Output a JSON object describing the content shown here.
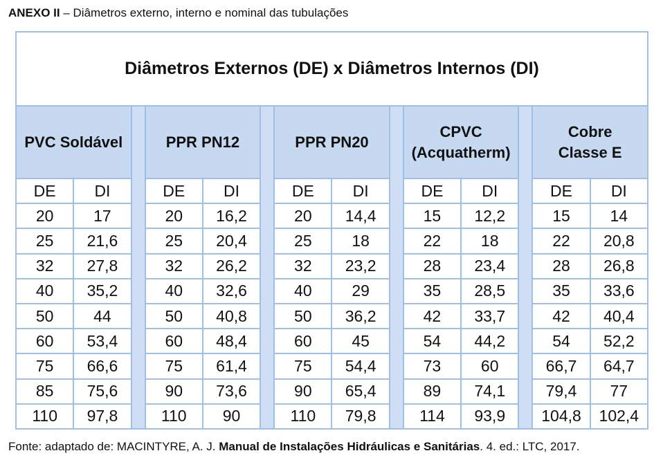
{
  "caption": {
    "label": "ANEXO II",
    "text": " – Diâmetros externo, interno e nominal das tubulações"
  },
  "table": {
    "title": "Diâmetros Externos (DE) x Diâmetros Internos (DI)",
    "col_de": "DE",
    "col_di": "DI",
    "groups": [
      {
        "name": "PVC Soldável",
        "rows": [
          [
            "20",
            "17"
          ],
          [
            "25",
            "21,6"
          ],
          [
            "32",
            "27,8"
          ],
          [
            "40",
            "35,2"
          ],
          [
            "50",
            "44"
          ],
          [
            "60",
            "53,4"
          ],
          [
            "75",
            "66,6"
          ],
          [
            "85",
            "75,6"
          ],
          [
            "110",
            "97,8"
          ]
        ]
      },
      {
        "name": "PPR PN12",
        "rows": [
          [
            "20",
            "16,2"
          ],
          [
            "25",
            "20,4"
          ],
          [
            "32",
            "26,2"
          ],
          [
            "40",
            "32,6"
          ],
          [
            "50",
            "40,8"
          ],
          [
            "60",
            "48,4"
          ],
          [
            "75",
            "61,4"
          ],
          [
            "90",
            "73,6"
          ],
          [
            "110",
            "90"
          ]
        ]
      },
      {
        "name": "PPR PN20",
        "rows": [
          [
            "20",
            "14,4"
          ],
          [
            "25",
            "18"
          ],
          [
            "32",
            "23,2"
          ],
          [
            "40",
            "29"
          ],
          [
            "50",
            "36,2"
          ],
          [
            "60",
            "45"
          ],
          [
            "75",
            "54,4"
          ],
          [
            "90",
            "65,4"
          ],
          [
            "110",
            "79,8"
          ]
        ]
      },
      {
        "name": "CPVC\n(Acquatherm)",
        "rows": [
          [
            "15",
            "12,2"
          ],
          [
            "22",
            "18"
          ],
          [
            "28",
            "23,4"
          ],
          [
            "35",
            "28,5"
          ],
          [
            "42",
            "33,7"
          ],
          [
            "54",
            "44,2"
          ],
          [
            "73",
            "60"
          ],
          [
            "89",
            "74,1"
          ],
          [
            "114",
            "93,9"
          ]
        ]
      },
      {
        "name": "Cobre\nClasse E",
        "rows": [
          [
            "15",
            "14"
          ],
          [
            "22",
            "20,8"
          ],
          [
            "28",
            "26,8"
          ],
          [
            "35",
            "33,6"
          ],
          [
            "42",
            "40,4"
          ],
          [
            "54",
            "52,2"
          ],
          [
            "66,7",
            "64,7"
          ],
          [
            "79,4",
            "77"
          ],
          [
            "104,8",
            "102,4"
          ]
        ]
      }
    ]
  },
  "source": {
    "prefix": "Fonte: adaptado de: MACINTYRE, A. J. ",
    "book": "Manual de Instalações Hidráulicas e Sanitárias",
    "suffix": ". 4. ed.: LTC, 2017."
  }
}
